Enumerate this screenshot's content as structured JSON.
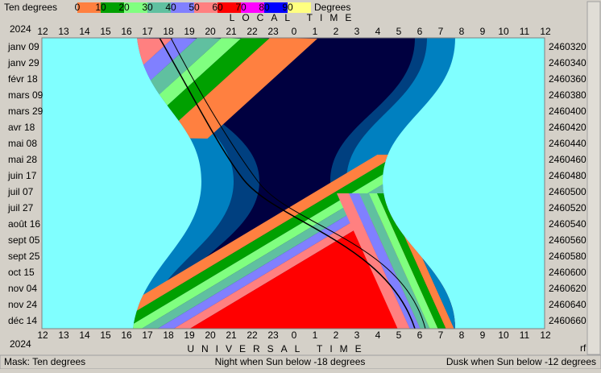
{
  "header": {
    "mask_name": "Ten degrees",
    "scale_unit": "Degrees",
    "top_axis_title": "LOCAL TIME",
    "bottom_axis_title": "UNIVERSAL TIME",
    "year_top": "2024",
    "year_bottom": "2024"
  },
  "scale": {
    "labels": [
      0,
      10,
      20,
      30,
      40,
      50,
      60,
      70,
      80,
      90
    ],
    "colors": [
      "#ff8040",
      "#00a000",
      "#80ff80",
      "#60c0a0",
      "#8080ff",
      "#ff8080",
      "#ff0000",
      "#ff00ff",
      "#0000ff",
      "#ffff80"
    ]
  },
  "hour_labels": [
    12,
    13,
    14,
    15,
    16,
    17,
    18,
    19,
    20,
    21,
    22,
    23,
    0,
    1,
    2,
    3,
    4,
    5,
    6,
    7,
    8,
    9,
    10,
    11,
    12
  ],
  "date_labels": [
    "janv 09",
    "janv 29",
    "févr 18",
    "mars 09",
    "mars 29",
    "avr 18",
    "mai 08",
    "mai 28",
    "juin 17",
    "juil 07",
    "juil 27",
    "août 16",
    "sept 05",
    "sept 25",
    "oct 15",
    "nov 04",
    "nov 24",
    "déc 14"
  ],
  "jd_labels": [
    2460320,
    2460340,
    2460360,
    2460380,
    2460400,
    2460420,
    2460440,
    2460460,
    2460480,
    2460500,
    2460520,
    2460540,
    2460560,
    2460580,
    2460600,
    2460620,
    2460640,
    2460660
  ],
  "corner_label": "rf",
  "status": {
    "mask": "Mask:  Ten degrees",
    "night": "Night when Sun below -18 degrees",
    "dusk": "Dusk when Sun below -12 degrees"
  }
}
